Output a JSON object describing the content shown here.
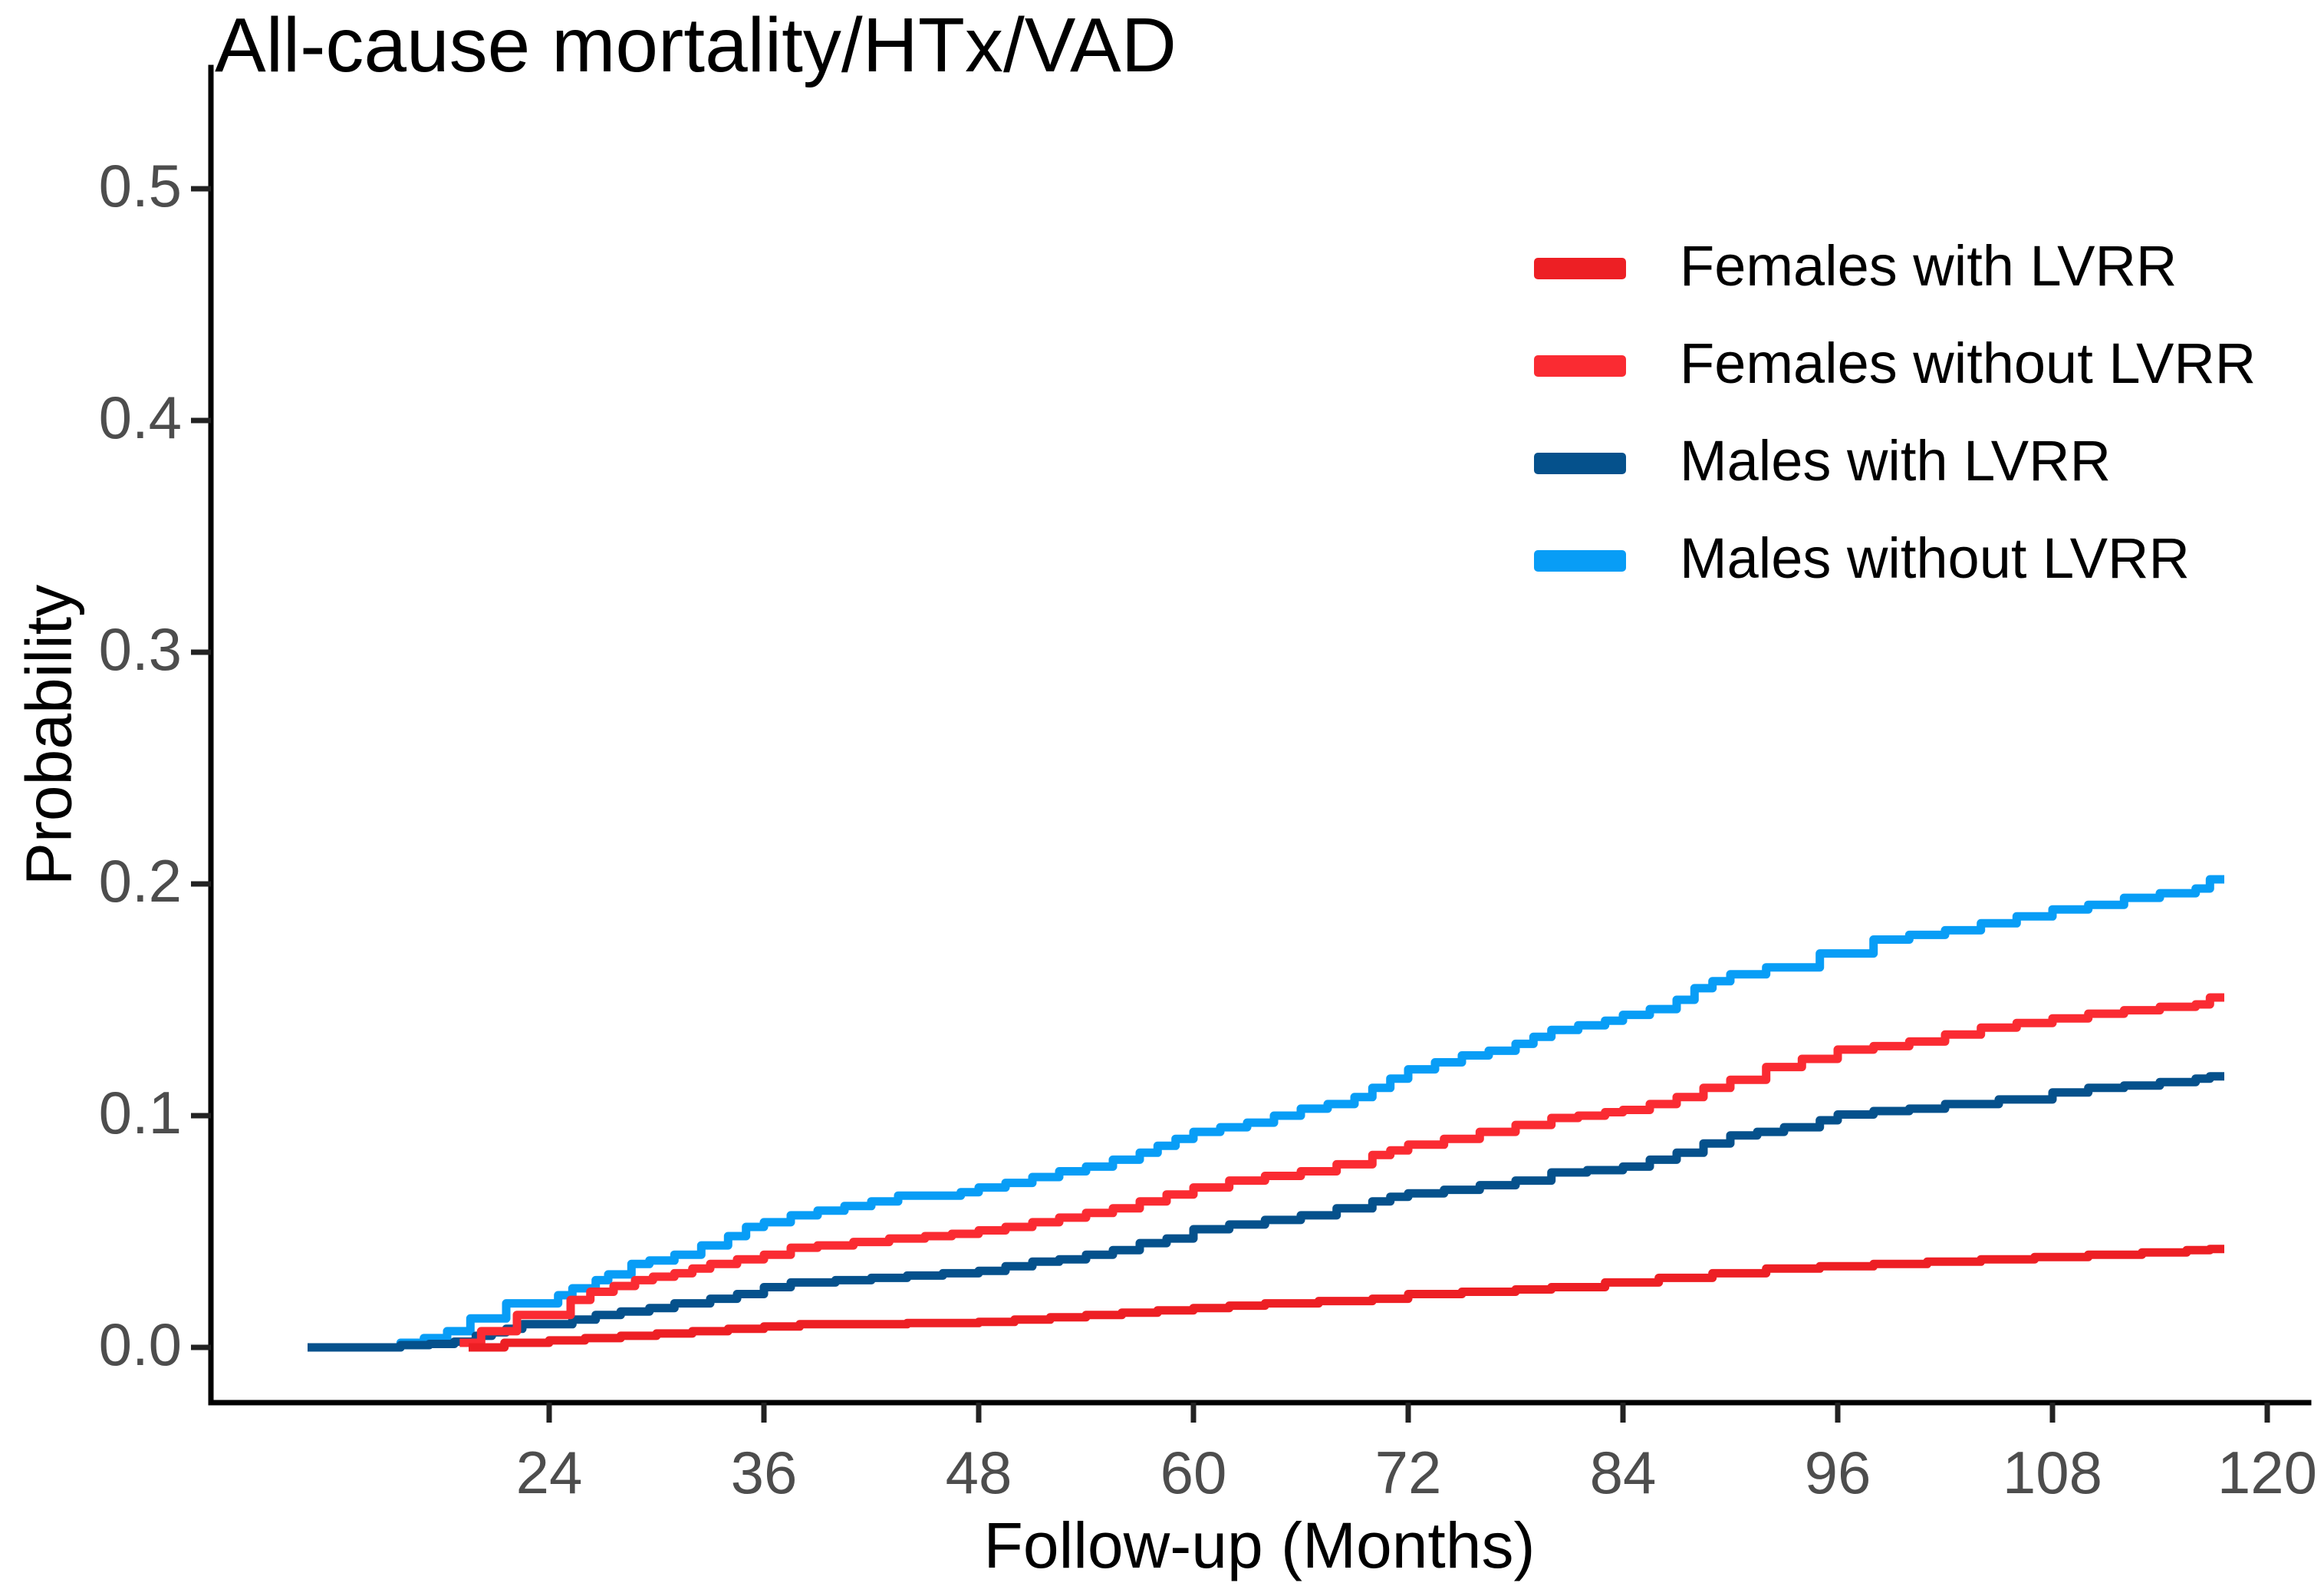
{
  "title": "All-cause mortality/HTx/VAD",
  "xlabel": "Follow-up (Months)",
  "ylabel": "Probability",
  "colors": {
    "females_with_lvrr": "#ED1F24",
    "females_without_lvrr": "#FA2B32",
    "males_with_lvrr": "#05518C",
    "males_without_lvrr": "#089DF6",
    "axis_line": "#000000",
    "tick_mark": "#222222",
    "tick_text": "#4d4d4d"
  },
  "chart_data": {
    "type": "line",
    "subtype": "kaplan-meier-step",
    "title": "All-cause mortality/HTx/VAD",
    "xlabel": "Follow-up (Months)",
    "ylabel": "Probability",
    "xlim": [
      5.2,
      122.3
    ],
    "ylim": [
      -0.024,
      0.526
    ],
    "grid": false,
    "legend_position": "inside-top-right",
    "x_ticks": [
      {
        "value": 24,
        "label": "24"
      },
      {
        "value": 36,
        "label": "36"
      },
      {
        "value": 48,
        "label": "48"
      },
      {
        "value": 60,
        "label": "60"
      },
      {
        "value": 72,
        "label": "72"
      },
      {
        "value": 84,
        "label": "84"
      },
      {
        "value": 96,
        "label": "96"
      },
      {
        "value": 108,
        "label": "108"
      },
      {
        "value": 120,
        "label": "120"
      }
    ],
    "y_ticks": [
      {
        "value": 0.0,
        "label": "0.0"
      },
      {
        "value": 0.1,
        "label": "0.1"
      },
      {
        "value": 0.2,
        "label": "0.2"
      },
      {
        "value": 0.3,
        "label": "0.3"
      },
      {
        "value": 0.4,
        "label": "0.4"
      },
      {
        "value": 0.5,
        "label": "0.5"
      }
    ],
    "series": [
      {
        "name": "Females with LVRR",
        "color": "#ED1F24",
        "points": [
          [
            19.5,
            0
          ],
          [
            21.5,
            0.002
          ],
          [
            24,
            0.003
          ],
          [
            26,
            0.004
          ],
          [
            28,
            0.005
          ],
          [
            30,
            0.006
          ],
          [
            32,
            0.007
          ],
          [
            34,
            0.008
          ],
          [
            36,
            0.009
          ],
          [
            38,
            0.01
          ],
          [
            44,
            0.0105
          ],
          [
            48,
            0.011
          ],
          [
            50,
            0.012
          ],
          [
            52,
            0.013
          ],
          [
            54,
            0.014
          ],
          [
            56,
            0.015
          ],
          [
            58,
            0.016
          ],
          [
            60,
            0.017
          ],
          [
            62,
            0.018
          ],
          [
            64,
            0.019
          ],
          [
            67,
            0.02
          ],
          [
            70,
            0.021
          ],
          [
            72,
            0.023
          ],
          [
            75,
            0.024
          ],
          [
            78,
            0.025
          ],
          [
            80,
            0.026
          ],
          [
            83,
            0.028
          ],
          [
            86,
            0.03
          ],
          [
            89,
            0.032
          ],
          [
            92,
            0.034
          ],
          [
            95,
            0.035
          ],
          [
            98,
            0.036
          ],
          [
            101,
            0.037
          ],
          [
            104,
            0.038
          ],
          [
            107,
            0.039
          ],
          [
            110,
            0.04
          ],
          [
            113,
            0.041
          ],
          [
            115.5,
            0.042
          ],
          [
            116.8,
            0.0425
          ],
          [
            117.6,
            0.0425
          ]
        ]
      },
      {
        "name": "Females without LVRR",
        "color": "#FA2B32",
        "points": [
          [
            19,
            0.002
          ],
          [
            20.2,
            0.007
          ],
          [
            22.2,
            0.014
          ],
          [
            25.2,
            0.0205
          ],
          [
            26.3,
            0.024
          ],
          [
            27.6,
            0.0265
          ],
          [
            28.8,
            0.029
          ],
          [
            29.8,
            0.0305
          ],
          [
            31,
            0.032
          ],
          [
            32,
            0.034
          ],
          [
            33,
            0.036
          ],
          [
            34.5,
            0.038
          ],
          [
            36,
            0.04
          ],
          [
            37.5,
            0.043
          ],
          [
            39,
            0.044
          ],
          [
            41,
            0.0455
          ],
          [
            43,
            0.047
          ],
          [
            45,
            0.048
          ],
          [
            46.5,
            0.049
          ],
          [
            48,
            0.0505
          ],
          [
            49.5,
            0.052
          ],
          [
            51,
            0.054
          ],
          [
            52.5,
            0.056
          ],
          [
            54,
            0.058
          ],
          [
            55.5,
            0.06
          ],
          [
            57,
            0.063
          ],
          [
            58.5,
            0.066
          ],
          [
            60,
            0.069
          ],
          [
            62,
            0.072
          ],
          [
            64,
            0.074
          ],
          [
            66,
            0.076
          ],
          [
            68,
            0.079
          ],
          [
            70,
            0.083
          ],
          [
            71,
            0.085
          ],
          [
            72,
            0.0875
          ],
          [
            74,
            0.09
          ],
          [
            76,
            0.093
          ],
          [
            78,
            0.096
          ],
          [
            80,
            0.099
          ],
          [
            81.5,
            0.1
          ],
          [
            83,
            0.1015
          ],
          [
            84,
            0.1025
          ],
          [
            85.5,
            0.105
          ],
          [
            87,
            0.108
          ],
          [
            88.5,
            0.112
          ],
          [
            90,
            0.1155
          ],
          [
            92,
            0.121
          ],
          [
            94,
            0.1245
          ],
          [
            96,
            0.1285
          ],
          [
            98,
            0.13
          ],
          [
            100,
            0.132
          ],
          [
            102,
            0.135
          ],
          [
            104,
            0.138
          ],
          [
            106,
            0.14
          ],
          [
            108,
            0.142
          ],
          [
            110,
            0.144
          ],
          [
            112,
            0.1455
          ],
          [
            114,
            0.147
          ],
          [
            116,
            0.148
          ],
          [
            116.8,
            0.151
          ],
          [
            117.6,
            0.151
          ]
        ]
      },
      {
        "name": "Males with LVRR",
        "color": "#05518C",
        "points": [
          [
            10.5,
            0
          ],
          [
            15.7,
            0.001
          ],
          [
            17.3,
            0.0015
          ],
          [
            18.7,
            0.0025
          ],
          [
            19.9,
            0.005
          ],
          [
            20.8,
            0.0065
          ],
          [
            21.6,
            0.008
          ],
          [
            22.5,
            0.01
          ],
          [
            25.3,
            0.012
          ],
          [
            26.6,
            0.014
          ],
          [
            28,
            0.0155
          ],
          [
            29.6,
            0.017
          ],
          [
            31,
            0.019
          ],
          [
            33,
            0.021
          ],
          [
            34.5,
            0.023
          ],
          [
            36,
            0.026
          ],
          [
            37.5,
            0.028
          ],
          [
            40,
            0.029
          ],
          [
            42,
            0.03
          ],
          [
            44,
            0.031
          ],
          [
            46,
            0.032
          ],
          [
            48,
            0.033
          ],
          [
            49.5,
            0.035
          ],
          [
            51,
            0.037
          ],
          [
            52.5,
            0.038
          ],
          [
            54,
            0.04
          ],
          [
            55.5,
            0.042
          ],
          [
            57,
            0.045
          ],
          [
            58.5,
            0.047
          ],
          [
            60,
            0.051
          ],
          [
            62,
            0.053
          ],
          [
            64,
            0.055
          ],
          [
            66,
            0.057
          ],
          [
            68,
            0.06
          ],
          [
            70,
            0.063
          ],
          [
            71,
            0.065
          ],
          [
            72,
            0.0665
          ],
          [
            74,
            0.068
          ],
          [
            76,
            0.07
          ],
          [
            78,
            0.072
          ],
          [
            80,
            0.0755
          ],
          [
            82,
            0.0765
          ],
          [
            84,
            0.078
          ],
          [
            85.5,
            0.081
          ],
          [
            87,
            0.084
          ],
          [
            88.5,
            0.088
          ],
          [
            90,
            0.0915
          ],
          [
            91.5,
            0.093
          ],
          [
            93,
            0.095
          ],
          [
            95,
            0.098
          ],
          [
            96,
            0.1005
          ],
          [
            98,
            0.102
          ],
          [
            100,
            0.103
          ],
          [
            102,
            0.105
          ],
          [
            105,
            0.107
          ],
          [
            108,
            0.11
          ],
          [
            110,
            0.112
          ],
          [
            112,
            0.113
          ],
          [
            114,
            0.1145
          ],
          [
            116,
            0.116
          ],
          [
            116.8,
            0.117
          ],
          [
            117.6,
            0.117
          ]
        ]
      },
      {
        "name": "Males without LVRR",
        "color": "#089DF6",
        "points": [
          [
            10.5,
            0
          ],
          [
            15.7,
            0.002
          ],
          [
            17,
            0.004
          ],
          [
            18.3,
            0.007
          ],
          [
            19.6,
            0.0125
          ],
          [
            21.6,
            0.019
          ],
          [
            24.5,
            0.0225
          ],
          [
            25.3,
            0.0255
          ],
          [
            26.6,
            0.029
          ],
          [
            27.3,
            0.0315
          ],
          [
            28.6,
            0.036
          ],
          [
            29.6,
            0.0375
          ],
          [
            31,
            0.04
          ],
          [
            32.5,
            0.044
          ],
          [
            34,
            0.048
          ],
          [
            35,
            0.052
          ],
          [
            36,
            0.054
          ],
          [
            37.5,
            0.057
          ],
          [
            39,
            0.059
          ],
          [
            40.5,
            0.061
          ],
          [
            42,
            0.063
          ],
          [
            43.5,
            0.0655
          ],
          [
            47,
            0.067
          ],
          [
            48,
            0.069
          ],
          [
            49.5,
            0.071
          ],
          [
            51,
            0.0735
          ],
          [
            52.5,
            0.076
          ],
          [
            54,
            0.078
          ],
          [
            55.5,
            0.081
          ],
          [
            57,
            0.084
          ],
          [
            58,
            0.087
          ],
          [
            59,
            0.09
          ],
          [
            60,
            0.093
          ],
          [
            61.5,
            0.095
          ],
          [
            63,
            0.097
          ],
          [
            64.5,
            0.1
          ],
          [
            66,
            0.103
          ],
          [
            67.5,
            0.105
          ],
          [
            69,
            0.108
          ],
          [
            70,
            0.112
          ],
          [
            71,
            0.116
          ],
          [
            72,
            0.12
          ],
          [
            73.5,
            0.123
          ],
          [
            75,
            0.126
          ],
          [
            76.5,
            0.128
          ],
          [
            78,
            0.131
          ],
          [
            79,
            0.134
          ],
          [
            80,
            0.137
          ],
          [
            81.5,
            0.139
          ],
          [
            83,
            0.141
          ],
          [
            84,
            0.1435
          ],
          [
            85.5,
            0.146
          ],
          [
            87,
            0.15
          ],
          [
            88,
            0.155
          ],
          [
            89,
            0.158
          ],
          [
            90,
            0.161
          ],
          [
            92,
            0.164
          ],
          [
            95,
            0.17
          ],
          [
            98,
            0.176
          ],
          [
            100,
            0.178
          ],
          [
            102,
            0.18
          ],
          [
            104,
            0.183
          ],
          [
            106,
            0.186
          ],
          [
            108,
            0.189
          ],
          [
            110,
            0.191
          ],
          [
            112,
            0.194
          ],
          [
            114,
            0.196
          ],
          [
            116,
            0.198
          ],
          [
            116.8,
            0.202
          ],
          [
            117.6,
            0.202
          ]
        ]
      }
    ],
    "legend_entries": [
      "Females with LVRR",
      "Females without LVRR",
      "Males with LVRR",
      "Males without LVRR"
    ]
  }
}
